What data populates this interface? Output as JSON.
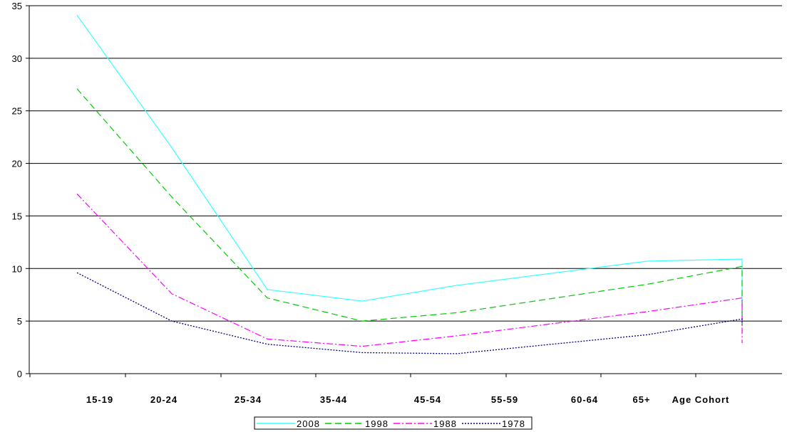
{
  "chart_data": {
    "type": "line",
    "title": "",
    "xlabel": "",
    "ylabel": "",
    "categories": [
      "15-19",
      "20-24",
      "25-34",
      "35-44",
      "45-54",
      "55-59",
      "60-64",
      "65+",
      "Age Cohort"
    ],
    "ylim": [
      0,
      35
    ],
    "yticks": [
      0,
      5,
      10,
      15,
      20,
      25,
      30,
      35
    ],
    "grid": "horizontal",
    "legend_position": "bottom",
    "series": [
      {
        "name": "2008",
        "color": "#33ffff",
        "dash": "solid",
        "values": [
          34.1,
          21.5,
          8.0,
          6.9,
          8.4,
          null,
          10.7,
          10.9,
          5.0
        ]
      },
      {
        "name": "1998",
        "color": "#00cc00",
        "dash": "dashed",
        "values": [
          27.1,
          16.8,
          7.2,
          5.0,
          5.8,
          null,
          8.5,
          10.2,
          3.9
        ]
      },
      {
        "name": "1988",
        "color": "#ff00ff",
        "dash": "dashdot",
        "values": [
          17.1,
          7.6,
          3.3,
          2.6,
          3.6,
          null,
          5.9,
          7.2,
          2.9
        ]
      },
      {
        "name": "1978",
        "color": "#000080",
        "dash": "dotted",
        "values": [
          9.6,
          5.0,
          2.8,
          2.0,
          1.9,
          null,
          3.7,
          5.2,
          4.7
        ]
      }
    ]
  }
}
